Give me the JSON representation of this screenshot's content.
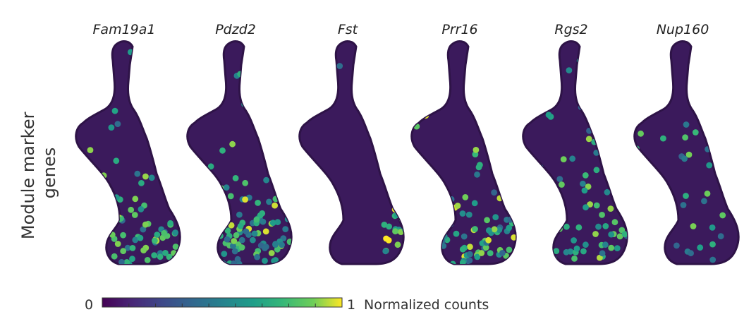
{
  "chart_data": {
    "type": "scatter",
    "title": "",
    "ylabel_lines": [
      "Module marker",
      "genes"
    ],
    "panels": [
      {
        "gene": "Fam19a1",
        "high_region": "bottom",
        "intensity": 0.55
      },
      {
        "gene": "Pdzd2",
        "high_region": "bottom",
        "intensity": 0.6
      },
      {
        "gene": "Fst",
        "high_region": "right-patch",
        "intensity": 0.8
      },
      {
        "gene": "Prr16",
        "high_region": "bottom",
        "intensity": 0.6
      },
      {
        "gene": "Rgs2",
        "high_region": "scattered",
        "intensity": 0.5
      },
      {
        "gene": "Nup160",
        "high_region": "sparse",
        "intensity": 0.45
      }
    ],
    "colorbar": {
      "min_label": "0",
      "max_label": "1",
      "title": "Normalized counts",
      "colormap": "viridis",
      "range": [
        0,
        1
      ]
    }
  },
  "colors": {
    "low": "#440154",
    "mid": "#21918c",
    "high": "#fde725"
  }
}
